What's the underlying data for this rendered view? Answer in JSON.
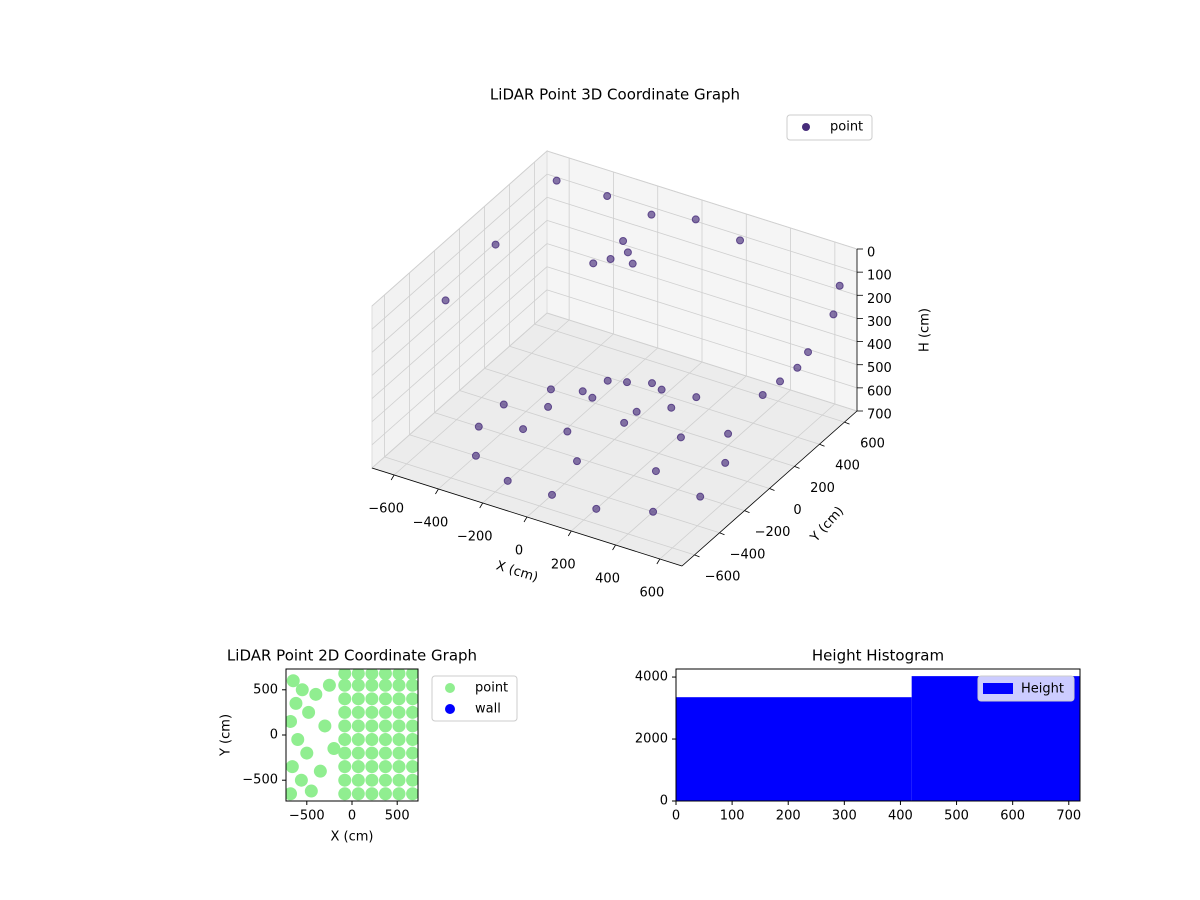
{
  "chart_data": [
    {
      "type": "scatter3d",
      "title": "LiDAR Point 3D Coordinate Graph",
      "xlabel": "X (cm)",
      "ylabel": "Y (cm)",
      "zlabel": "H (cm)",
      "xlim": [
        -700,
        700
      ],
      "ylim": [
        -700,
        700
      ],
      "zlim": [
        0,
        700
      ],
      "xticks": [
        -600,
        -400,
        -200,
        0,
        200,
        400,
        600
      ],
      "yticks": [
        -600,
        -400,
        -200,
        0,
        200,
        400,
        600
      ],
      "zticks": [
        0,
        100,
        200,
        300,
        400,
        500,
        600,
        700
      ],
      "grid": true,
      "legend": "upper right",
      "series": [
        {
          "name": "point",
          "color": "#472d7b",
          "x": [
            -400,
            -200,
            0,
            200,
            400,
            -500,
            500,
            -500,
            500,
            -400,
            400,
            -200,
            0,
            200,
            -300,
            0,
            300,
            -100,
            100,
            0,
            100,
            200,
            -200,
            -300,
            -250,
            -350,
            -200,
            -300,
            500,
            550,
            600,
            620,
            -600,
            -400,
            -200,
            0,
            200,
            -650,
            -650,
            650,
            650,
            -100,
            300,
            -300,
            100
          ],
          "y": [
            -400,
            -500,
            -500,
            -500,
            -400,
            -200,
            -200,
            0,
            0,
            200,
            200,
            300,
            300,
            300,
            -200,
            -300,
            -200,
            0,
            0,
            100,
            -100,
            100,
            100,
            500,
            550,
            450,
            500,
            600,
            300,
            350,
            400,
            450,
            600,
            650,
            650,
            650,
            650,
            200,
            -200,
            650,
            600,
            -200,
            0,
            0,
            200
          ],
          "z": [
            700,
            700,
            700,
            700,
            700,
            700,
            700,
            700,
            650,
            700,
            650,
            650,
            600,
            600,
            650,
            650,
            650,
            550,
            550,
            500,
            550,
            550,
            600,
            250,
            230,
            260,
            240,
            220,
            500,
            450,
            400,
            350,
            50,
            80,
            100,
            60,
            90,
            150,
            200,
            150,
            250,
            600,
            600,
            650,
            550
          ]
        }
      ]
    },
    {
      "type": "scatter",
      "title": "LiDAR Point 2D Coordinate Graph",
      "xlabel": "X (cm)",
      "ylabel": "Y (cm)",
      "xlim": [
        -730,
        730
      ],
      "ylim": [
        -730,
        730
      ],
      "xticks": [
        -500,
        0,
        500
      ],
      "yticks": [
        -500,
        0,
        500
      ],
      "legend": "outside right",
      "series": [
        {
          "name": "point",
          "color": "#90ee90",
          "x": [
            -80,
            70,
            220,
            370,
            520,
            670,
            -80,
            70,
            220,
            370,
            520,
            670,
            -80,
            70,
            220,
            370,
            520,
            670,
            -80,
            70,
            220,
            370,
            520,
            670,
            -80,
            70,
            220,
            370,
            520,
            670,
            -80,
            70,
            220,
            370,
            520,
            670,
            -80,
            70,
            220,
            370,
            520,
            670,
            -80,
            70,
            220,
            370,
            520,
            670,
            -80,
            70,
            220,
            370,
            520,
            670,
            -80,
            70,
            220,
            370,
            520,
            670,
            -650,
            -550,
            -620,
            -480,
            -680,
            -400,
            -600,
            -500,
            -660,
            -560,
            -450,
            -680,
            -350,
            -300,
            -250,
            -200
          ],
          "y": [
            -650,
            -650,
            -650,
            -650,
            -650,
            -650,
            -500,
            -500,
            -500,
            -500,
            -500,
            -500,
            -350,
            -350,
            -350,
            -350,
            -350,
            -350,
            -200,
            -200,
            -200,
            -200,
            -200,
            -200,
            -50,
            -50,
            -50,
            -50,
            -50,
            -50,
            100,
            100,
            100,
            100,
            100,
            100,
            250,
            250,
            250,
            250,
            250,
            250,
            400,
            400,
            400,
            400,
            400,
            400,
            550,
            550,
            550,
            550,
            550,
            550,
            680,
            680,
            680,
            680,
            680,
            680,
            600,
            500,
            350,
            250,
            150,
            450,
            -50,
            -200,
            -350,
            -500,
            -620,
            -650,
            -400,
            100,
            550,
            -150
          ]
        },
        {
          "name": "wall",
          "color": "#0000ff",
          "x": [],
          "y": []
        }
      ]
    },
    {
      "type": "histogram",
      "title": "Height Histogram",
      "bins": [
        0,
        420,
        720
      ],
      "counts": [
        3350,
        4030
      ],
      "name": "Height",
      "color": "#0000ff",
      "xlim": [
        0,
        720
      ],
      "ylim": [
        0,
        4260
      ],
      "xticks": [
        0,
        100,
        200,
        300,
        400,
        500,
        600,
        700
      ],
      "yticks": [
        0,
        2000,
        4000
      ],
      "legend": "upper right"
    }
  ]
}
